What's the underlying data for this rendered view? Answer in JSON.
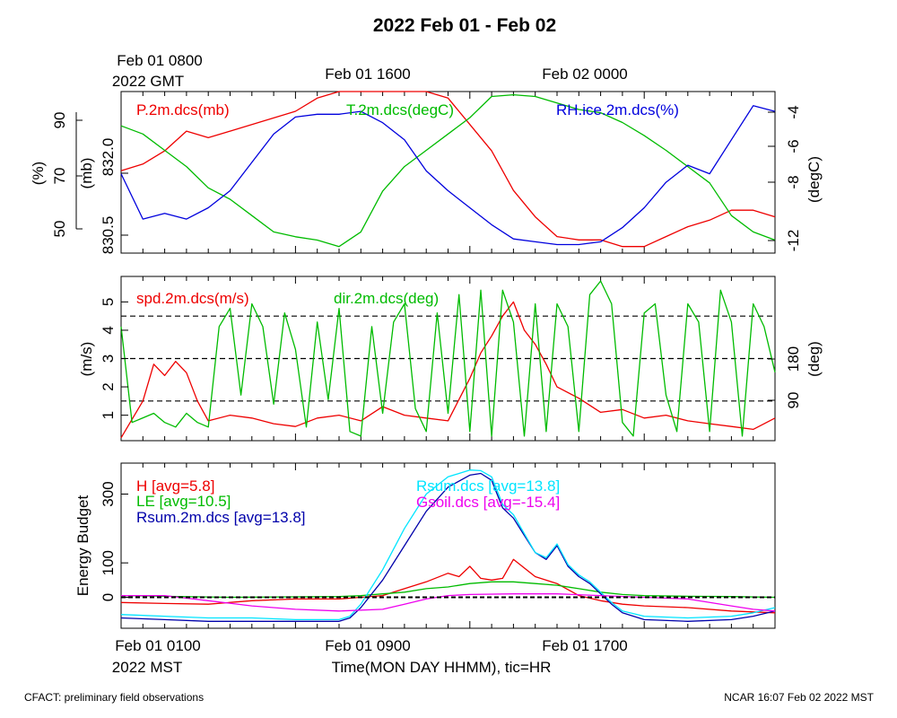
{
  "title": "2022 Feb 01 - Feb 02",
  "top_time_labels": {
    "first_line1": "Feb 01 0800",
    "first_line2": "2022 GMT",
    "second": "Feb 01 1600",
    "third": "Feb 02 0000"
  },
  "bottom_time_labels": {
    "first_line1": "Feb 01 0100",
    "first_line2": "2022 MST",
    "second": "Feb 01 0900",
    "third": "Feb 01 1700"
  },
  "xlabel": "Time(MON DAY HHMM), tic=HR",
  "footer_left": "CFACT: preliminary field observations",
  "footer_right": "NCAR 16:07 Feb 02 2022 MST",
  "colors": {
    "red": "#ee0000",
    "green": "#00bb00",
    "blue": "#0000dd",
    "cyan": "#00e5ff",
    "magenta": "#ee00ee",
    "darkblue": "#0000aa"
  },
  "chart_data": [
    {
      "type": "line",
      "x_unit": "hours since Feb 01 0000 MST",
      "xlim": [
        0,
        30
      ],
      "axes": {
        "left_outer": {
          "label": "(%)",
          "ticks": [
            "50",
            "70",
            "90"
          ],
          "range": [
            46,
            103
          ]
        },
        "left_inner": {
          "label": "(mb)",
          "ticks": [
            "830.5",
            "832.0"
          ],
          "range": [
            830.25,
            832.7
          ]
        },
        "right": {
          "label": "(degC)",
          "ticks": [
            "-12",
            "-8",
            "-6",
            "-4"
          ],
          "range": [
            -12.8,
            -2.9
          ]
        }
      },
      "series": [
        {
          "name": "P.2m.dcs(mb)",
          "axis": "left_inner",
          "color": "red",
          "x": [
            0,
            1,
            2,
            3,
            4,
            5,
            6,
            7,
            8,
            9,
            10,
            11,
            12,
            13,
            14,
            15,
            16,
            17,
            18,
            19,
            20,
            21,
            22,
            23,
            24,
            25,
            26,
            27,
            28,
            29,
            30
          ],
          "y": [
            831.5,
            831.6,
            831.8,
            832.1,
            832.0,
            832.1,
            832.2,
            832.3,
            832.4,
            832.6,
            832.8,
            833.0,
            833.0,
            832.9,
            832.8,
            832.6,
            832.2,
            831.8,
            831.2,
            830.8,
            830.5,
            830.45,
            830.45,
            830.35,
            830.35,
            830.5,
            830.65,
            830.75,
            830.9,
            830.9,
            830.8
          ]
        },
        {
          "name": "T.2m.dcs(degC)",
          "axis": "right",
          "color": "green",
          "x": [
            0,
            1,
            2,
            3,
            4,
            5,
            6,
            7,
            8,
            9,
            10,
            11,
            12,
            13,
            14,
            15,
            16,
            17,
            18,
            19,
            20,
            21,
            22,
            23,
            24,
            25,
            26,
            27,
            28,
            29,
            30
          ],
          "y": [
            -5.0,
            -5.5,
            -6.5,
            -7.5,
            -8.8,
            -9.5,
            -10.5,
            -11.5,
            -11.8,
            -12.0,
            -12.4,
            -11.5,
            -9.0,
            -7.5,
            -6.5,
            -5.5,
            -4.5,
            -3.2,
            -3.1,
            -3.2,
            -3.6,
            -4.0,
            -4.2,
            -4.8,
            -5.6,
            -6.5,
            -7.5,
            -8.5,
            -10.5,
            -11.5,
            -12.0
          ]
        },
        {
          "name": "RH.ice.2m.dcs(%)",
          "axis": "left_outer",
          "color": "blue",
          "x": [
            0,
            1,
            2,
            3,
            4,
            5,
            6,
            7,
            8,
            9,
            10,
            11,
            12,
            13,
            14,
            15,
            16,
            17,
            18,
            19,
            20,
            21,
            22,
            23,
            24,
            25,
            26,
            27,
            28,
            29,
            30
          ],
          "y": [
            74,
            58,
            60,
            58,
            62,
            68,
            78,
            88,
            94,
            95,
            95,
            96,
            92,
            86,
            75,
            68,
            62,
            56,
            51,
            50,
            49,
            49,
            50,
            55,
            62,
            71,
            77,
            74,
            86,
            98,
            96
          ]
        }
      ]
    },
    {
      "type": "line",
      "x_unit": "hours since Feb 01 0000 MST",
      "xlim": [
        0,
        30
      ],
      "axes": {
        "left": {
          "label": "(m/s)",
          "ticks": [
            "1",
            "2",
            "3",
            "4",
            "5"
          ],
          "range": [
            0.1,
            5.9
          ]
        },
        "right": {
          "label": "(deg)",
          "ticks": [
            "90",
            "180"
          ],
          "range": [
            0,
            360
          ]
        }
      },
      "reference_lines": [
        1.5,
        3.0,
        4.5
      ],
      "series": [
        {
          "name": "spd.2m.dcs(m/s)",
          "axis": "left",
          "color": "red",
          "x": [
            0,
            1,
            1.5,
            2,
            2.5,
            3,
            3.5,
            4,
            5,
            6,
            7,
            8,
            9,
            10,
            11,
            12,
            13,
            14,
            15,
            16,
            16.5,
            17,
            17.5,
            18,
            18.5,
            19,
            19.5,
            20,
            21,
            22,
            23,
            24,
            25,
            26,
            27,
            28,
            29,
            30
          ],
          "y": [
            0.2,
            1.5,
            2.8,
            2.4,
            2.9,
            2.5,
            1.5,
            0.8,
            1.0,
            0.9,
            0.7,
            0.6,
            0.9,
            1.0,
            0.8,
            1.3,
            1.0,
            0.9,
            0.8,
            2.3,
            3.2,
            3.8,
            4.5,
            5.0,
            4.0,
            3.5,
            2.8,
            2.0,
            1.6,
            1.1,
            1.2,
            0.9,
            1.0,
            0.8,
            0.7,
            0.6,
            0.5,
            0.9
          ]
        },
        {
          "name": "dir.2m.dcs(deg)",
          "axis": "right",
          "color": "green",
          "x": [
            0,
            0.5,
            1,
            1.5,
            2,
            2.5,
            3,
            3.5,
            4,
            4.5,
            5,
            5.5,
            6,
            6.5,
            7,
            7.5,
            8,
            8.5,
            9,
            9.5,
            10,
            10.5,
            11,
            11.5,
            12,
            12.5,
            13,
            13.5,
            14,
            14.5,
            15,
            15.5,
            16,
            16.5,
            17,
            17.5,
            18,
            18.5,
            19,
            19.5,
            20,
            20.5,
            21,
            21.5,
            22,
            22.5,
            23,
            23.5,
            24,
            24.5,
            25,
            25.5,
            26,
            26.5,
            27,
            27.5,
            28,
            28.5,
            29,
            29.5,
            30
          ],
          "y": [
            250,
            40,
            50,
            60,
            40,
            30,
            60,
            40,
            30,
            250,
            290,
            100,
            300,
            250,
            80,
            280,
            200,
            30,
            260,
            90,
            290,
            20,
            10,
            250,
            60,
            260,
            300,
            70,
            20,
            280,
            60,
            320,
            20,
            330,
            10,
            330,
            260,
            10,
            300,
            20,
            300,
            250,
            20,
            320,
            350,
            300,
            40,
            10,
            280,
            300,
            100,
            20,
            300,
            260,
            20,
            330,
            260,
            10,
            300,
            250,
            150
          ]
        }
      ]
    },
    {
      "type": "line",
      "ylabel": "Energy Budget",
      "x_unit": "hours since Feb 01 0000 MST",
      "xlim": [
        0,
        30
      ],
      "ylim": [
        -90,
        390
      ],
      "yticks": [
        "0",
        "100",
        "300"
      ],
      "reference_lines": [
        0
      ],
      "series": [
        {
          "name": "H [avg=5.8]",
          "color": "red",
          "x": [
            0,
            2,
            4,
            6,
            8,
            10,
            11,
            12,
            13,
            14,
            15,
            15.5,
            16,
            16.5,
            17,
            17.5,
            18,
            19,
            20,
            21,
            22,
            23,
            24,
            26,
            28,
            30
          ],
          "y": [
            -15,
            -18,
            -20,
            -10,
            -5,
            -5,
            0,
            5,
            25,
            45,
            70,
            60,
            90,
            55,
            50,
            55,
            110,
            60,
            40,
            5,
            -10,
            -20,
            -25,
            -30,
            -40,
            -45
          ]
        },
        {
          "name": "LE [avg=10.5]",
          "color": "green",
          "x": [
            0,
            5,
            10,
            11,
            12,
            13,
            14,
            15,
            16,
            17,
            18,
            19,
            20,
            21,
            22,
            23,
            24,
            26,
            28,
            30
          ],
          "y": [
            5,
            0,
            2,
            5,
            10,
            15,
            25,
            30,
            40,
            45,
            45,
            40,
            35,
            25,
            15,
            8,
            5,
            3,
            2,
            0
          ]
        },
        {
          "name": "Rsum.2m.dcs [avg=13.8]",
          "color": "darkblue",
          "x": [
            0,
            2,
            4,
            6,
            8,
            10,
            10.5,
            11,
            12,
            13,
            14,
            15,
            16,
            16.5,
            17,
            17.5,
            18,
            18.5,
            19,
            19.5,
            20,
            20.5,
            21,
            21.5,
            22,
            22.5,
            23,
            24,
            26,
            28,
            29,
            30
          ],
          "y": [
            -60,
            -65,
            -70,
            -70,
            -70,
            -70,
            -60,
            -30,
            50,
            150,
            250,
            320,
            355,
            360,
            340,
            260,
            230,
            180,
            130,
            110,
            150,
            90,
            60,
            40,
            10,
            -20,
            -45,
            -65,
            -70,
            -65,
            -55,
            -40
          ]
        },
        {
          "name": "Rsum.dcs [avg=13.8]",
          "color": "cyan",
          "x": [
            0,
            2,
            4,
            6,
            8,
            10,
            10.5,
            11,
            12,
            13,
            14,
            15,
            16,
            16.5,
            17,
            17.5,
            18,
            18.5,
            19,
            19.5,
            20,
            20.5,
            21,
            21.5,
            22,
            22.5,
            23,
            24,
            26,
            28,
            29,
            30
          ],
          "y": [
            -50,
            -55,
            -60,
            -60,
            -65,
            -65,
            -55,
            -20,
            80,
            200,
            300,
            350,
            370,
            368,
            350,
            270,
            240,
            185,
            130,
            115,
            155,
            95,
            65,
            45,
            15,
            -15,
            -40,
            -55,
            -60,
            -55,
            -45,
            -30
          ]
        },
        {
          "name": "Gsoil.dcs [avg=-15.4]",
          "color": "magenta",
          "x": [
            0,
            2,
            4,
            6,
            8,
            10,
            12,
            13,
            14,
            15,
            16,
            18,
            20,
            22,
            24,
            26,
            28,
            29,
            30
          ],
          "y": [
            5,
            5,
            -10,
            -25,
            -35,
            -40,
            -35,
            -20,
            -5,
            5,
            8,
            10,
            10,
            5,
            0,
            -5,
            -25,
            -35,
            -40
          ]
        }
      ]
    }
  ]
}
